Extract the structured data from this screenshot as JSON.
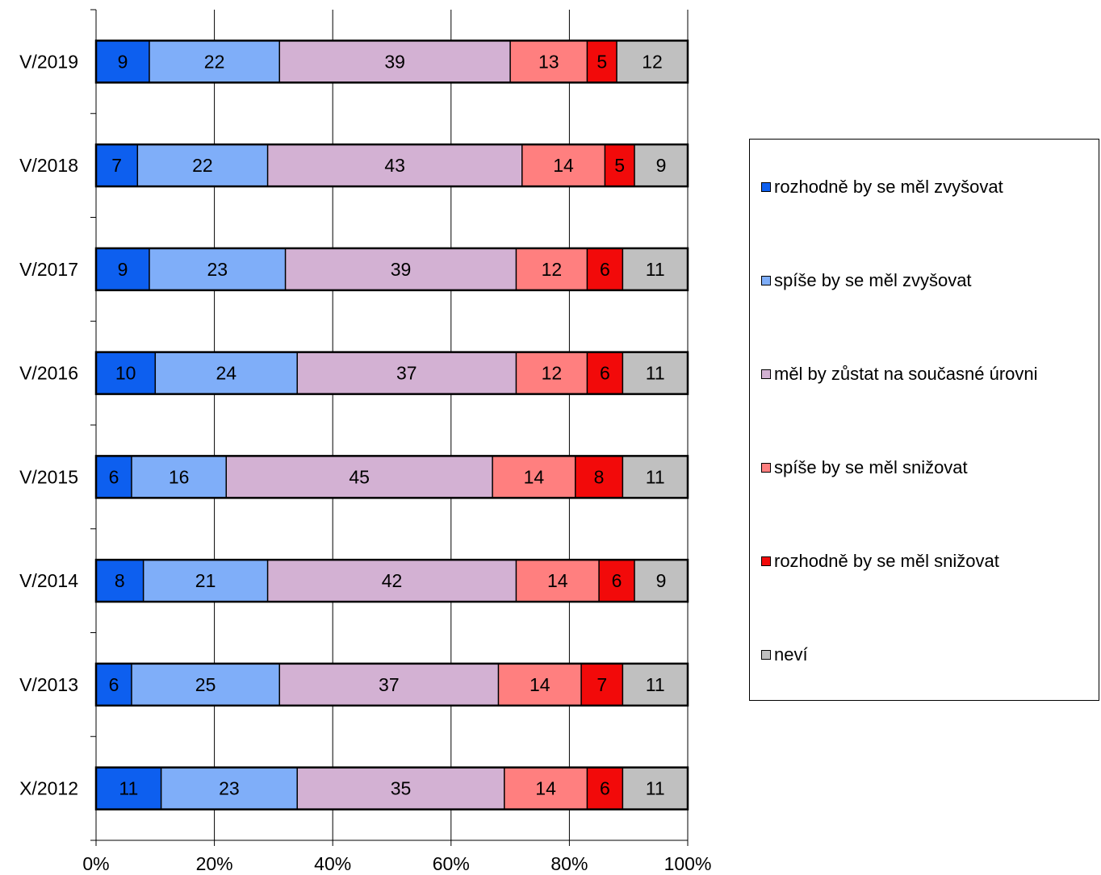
{
  "chart_data": {
    "type": "bar",
    "orientation": "horizontal",
    "stacked": true,
    "normalized": true,
    "categories": [
      "V/2019",
      "V/2018",
      "V/2017",
      "V/2016",
      "V/2015",
      "V/2014",
      "V/2013",
      "X/2012"
    ],
    "series": [
      {
        "name": "rozhodně by se měl zvyšovat",
        "color": "#0D5FEF",
        "values": [
          9,
          7,
          9,
          10,
          6,
          8,
          6,
          11
        ]
      },
      {
        "name": "spíše by se měl zvyšovat",
        "color": "#7FAEF9",
        "values": [
          22,
          22,
          23,
          24,
          16,
          21,
          25,
          23
        ]
      },
      {
        "name": "měl by zůstat na současné úrovni",
        "color": "#D3B1D3",
        "values": [
          39,
          43,
          39,
          37,
          45,
          42,
          37,
          35
        ]
      },
      {
        "name": "spíše by se měl snižovat",
        "color": "#FF7F7F",
        "values": [
          13,
          14,
          12,
          12,
          14,
          14,
          14,
          14
        ]
      },
      {
        "name": "rozhodně by se měl snižovat",
        "color": "#F20A0A",
        "values": [
          5,
          5,
          6,
          6,
          8,
          6,
          7,
          6
        ]
      },
      {
        "name": "neví",
        "color": "#C0C0C0",
        "values": [
          12,
          9,
          11,
          11,
          11,
          9,
          11,
          11
        ]
      }
    ],
    "xlim": [
      0,
      100
    ],
    "xticks": [
      "0%",
      "20%",
      "40%",
      "60%",
      "80%",
      "100%"
    ],
    "grid": true,
    "legend_position": "right"
  }
}
